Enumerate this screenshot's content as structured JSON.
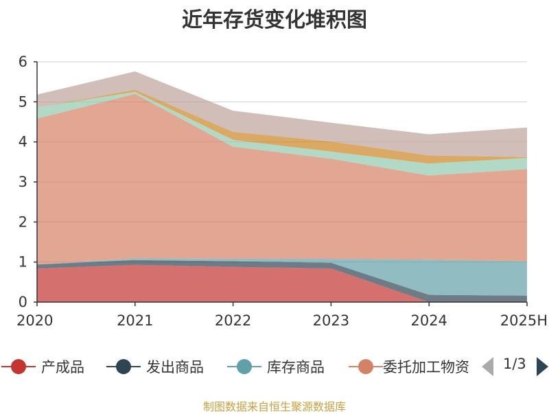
{
  "chart_data": {
    "type": "area",
    "title": "近年存货变化堆积图",
    "categories": [
      "2020",
      "2021",
      "2022",
      "2023",
      "2024",
      "2025H"
    ],
    "ylim": [
      0,
      6
    ],
    "yticks": [
      0,
      1,
      2,
      3,
      4,
      5,
      6
    ],
    "stacked": true,
    "grid": true,
    "series": [
      {
        "name": "产成品",
        "color": "#c23531",
        "values": [
          0.84,
          0.93,
          0.88,
          0.84,
          0.0,
          0.0
        ]
      },
      {
        "name": "发出商品",
        "color": "#2f4554",
        "values": [
          0.1,
          0.12,
          0.14,
          0.14,
          0.18,
          0.16
        ]
      },
      {
        "name": "库存商品",
        "color": "#61a0a8",
        "values": [
          0.0,
          0.04,
          0.06,
          0.1,
          0.88,
          0.86
        ]
      },
      {
        "name": "委托加工物资",
        "color": "#d48265",
        "values": [
          3.64,
          4.11,
          2.8,
          2.5,
          2.1,
          2.3
        ]
      },
      {
        "name": "",
        "color": "#91c7ae",
        "values": [
          0.28,
          0.05,
          0.17,
          0.18,
          0.3,
          0.28
        ]
      },
      {
        "name": "",
        "color": "#749f83",
        "values": [
          0.0,
          0.0,
          0.0,
          0.0,
          0.0,
          0.0
        ]
      },
      {
        "name": "",
        "color": "#ca8622",
        "values": [
          0.0,
          0.05,
          0.2,
          0.25,
          0.2,
          0.02
        ]
      },
      {
        "name": "",
        "color": "#bda29a",
        "values": [
          0.32,
          0.46,
          0.53,
          0.47,
          0.53,
          0.74
        ]
      }
    ],
    "area_opacity": 0.7,
    "legend_position": "bottom",
    "legend_page": "1/3",
    "source": "制图数据来自恒生聚源数据库"
  }
}
